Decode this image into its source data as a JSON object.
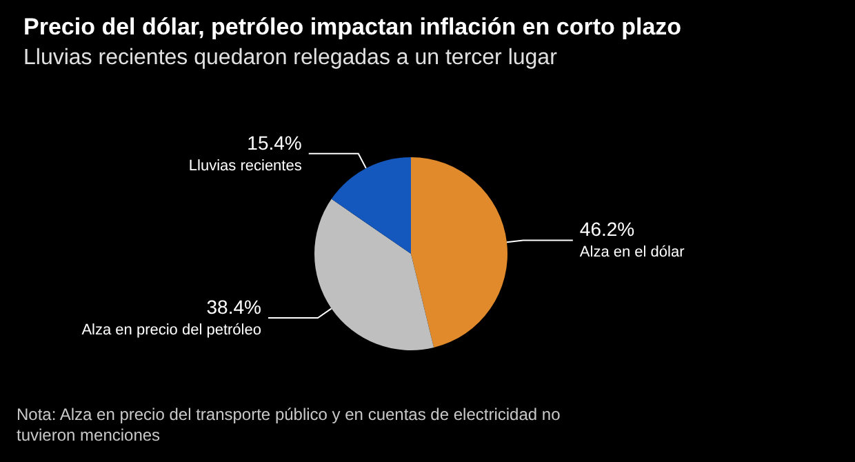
{
  "chart_data": {
    "type": "pie",
    "title": "Precio del dólar, petróleo impactan inflación en corto plazo",
    "subtitle": "Lluvias recientes quedaron relegadas a un tercer lugar",
    "categories": [
      "Alza en el dólar",
      "Alza en precio del petróleo",
      "Lluvias recientes"
    ],
    "values": [
      46.2,
      38.4,
      15.4
    ],
    "value_labels": [
      "46.2%",
      "38.4%",
      "15.4%"
    ],
    "colors": [
      "#e08a2c",
      "#bfbfbf",
      "#1458bd"
    ],
    "legend": false,
    "annotations": [
      "Nota: Alza en precio del transporte público y en cuentas de electricidad no tuvieron menciones"
    ]
  }
}
